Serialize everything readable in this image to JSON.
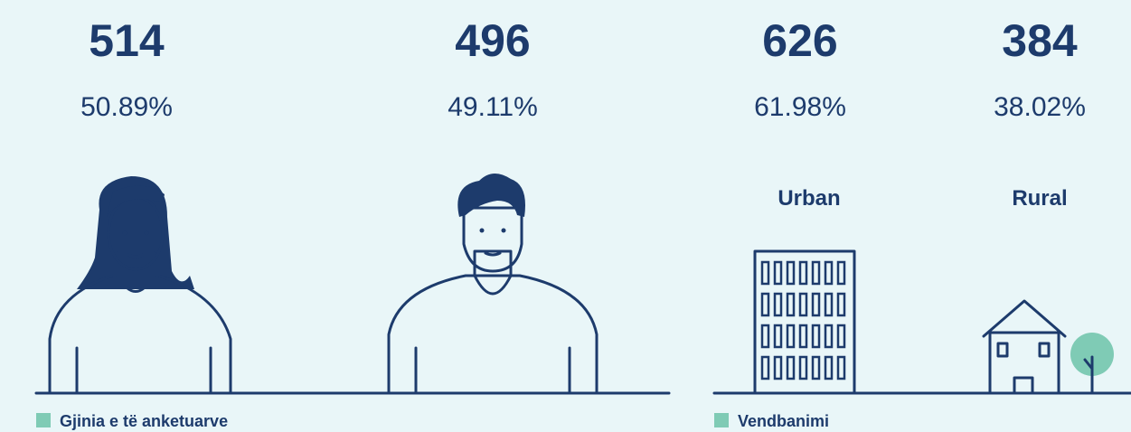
{
  "gender": {
    "caption": "Gjinia e të anketuarve",
    "items": [
      {
        "count": 514,
        "percent": "50.89%"
      },
      {
        "count": 496,
        "percent": "49.11%"
      }
    ]
  },
  "settlement": {
    "caption": "Vendbanimi",
    "items": [
      {
        "count": 626,
        "percent": "61.98%",
        "label": "Urban"
      },
      {
        "count": 384,
        "percent": "38.02%",
        "label": "Rural"
      }
    ]
  }
}
